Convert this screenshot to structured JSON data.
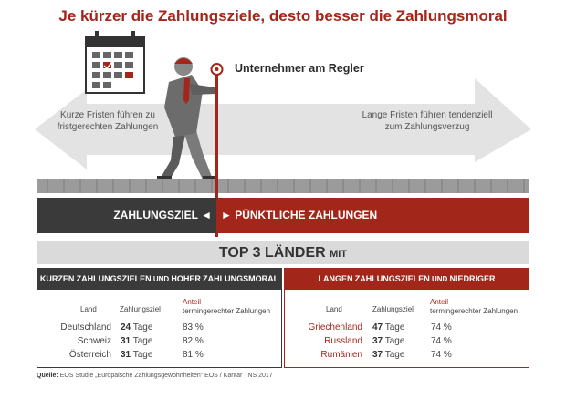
{
  "title": "Je kürzer die Zahlungsziele, desto besser die Zahlungsmoral",
  "illustration": {
    "subject_label": "Unternehmer am Regler",
    "arrow_left_text": "Kurze Fristen führen zu fristgerechten Zahlungen",
    "arrow_right_text": "Lange Fristen führen tendenziell zum Zahlungsverzug",
    "icons": [
      "calendar-icon",
      "businessman-figure",
      "slider-handle-icon"
    ]
  },
  "bar": {
    "left_label": "ZAHLUNGSZIEL ◄",
    "right_label": "► PÜNKTLICHE ZAHLUNGEN"
  },
  "top3": {
    "title": "TOP 3 LÄNDER",
    "title_suffix": "MIT",
    "left": {
      "header": {
        "w1": "KURZEN",
        "w2": "ZAHLUNGSZIELEN",
        "w3": "UND",
        "w4": "HOHER",
        "w5": "ZAHLUNGSMORAL"
      },
      "columns": {
        "land": "Land",
        "ziel": "Zahlungsziel",
        "anteil1": "Anteil",
        "anteil2": "termingerechter Zahlungen"
      },
      "rows": [
        {
          "land": "Deutschland",
          "days": "24",
          "unit": "Tage",
          "share": "83 %"
        },
        {
          "land": "Schweiz",
          "days": "31",
          "unit": "Tage",
          "share": "82 %"
        },
        {
          "land": "Österreich",
          "days": "31",
          "unit": "Tage",
          "share": "81 %"
        }
      ]
    },
    "right": {
      "header": {
        "w1": "LANGEN",
        "w2": "ZAHLUNGSZIELEN",
        "w3": "UND",
        "w4": "NIEDRIGER",
        "w5": "ZAHLUNGSMORAL"
      },
      "columns": {
        "land": "Land",
        "ziel": "Zahlungsziel",
        "anteil1": "Anteil",
        "anteil2": "termingerechter Zahlungen"
      },
      "rows": [
        {
          "land": "Griechenland",
          "days": "47",
          "unit": "Tage",
          "share": "74 %"
        },
        {
          "land": "Russland",
          "days": "37",
          "unit": "Tage",
          "share": "74 %"
        },
        {
          "land": "Rumänien",
          "days": "37",
          "unit": "Tage",
          "share": "74 %"
        }
      ]
    }
  },
  "source": {
    "label": "Quelle:",
    "text": "EOS Studie „Europäische Zahlungsgewohnheiten“ EOS / Kantar TNS 2017"
  },
  "colors": {
    "accent": "#a3261a",
    "dark": "#3a3a3a",
    "arrow": "#e3e3e3"
  }
}
